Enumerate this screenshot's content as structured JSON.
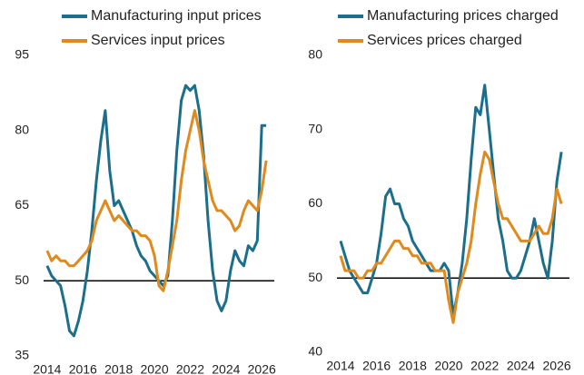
{
  "chart_data": [
    {
      "type": "line",
      "x": [
        2014,
        2014.25,
        2014.5,
        2014.75,
        2015,
        2015.25,
        2015.5,
        2015.75,
        2016,
        2016.25,
        2016.5,
        2016.75,
        2017,
        2017.25,
        2017.5,
        2017.75,
        2018,
        2018.25,
        2018.5,
        2018.75,
        2019,
        2019.25,
        2019.5,
        2019.75,
        2020,
        2020.25,
        2020.5,
        2020.75,
        2021,
        2021.25,
        2021.5,
        2021.75,
        2022,
        2022.25,
        2022.5,
        2022.75,
        2023,
        2023.25,
        2023.5,
        2023.75,
        2024,
        2024.25,
        2024.5,
        2024.75,
        2025,
        2025.25,
        2025.5,
        2025.75,
        2026,
        2026.25
      ],
      "series": [
        {
          "name": "Manufacturing input prices",
          "color": "#1b6f8c",
          "values": [
            53,
            51,
            50,
            49,
            45,
            40,
            39,
            42,
            46,
            52,
            60,
            70,
            78,
            84,
            72,
            65,
            66,
            64,
            62,
            60,
            57,
            55,
            54,
            52,
            51,
            50,
            49,
            51,
            62,
            76,
            86,
            89,
            88,
            89,
            84,
            75,
            62,
            52,
            46,
            44,
            46,
            52,
            56,
            54,
            53,
            57,
            56,
            58,
            81,
            81
          ]
        },
        {
          "name": "Services input prices",
          "color": "#e08a1e",
          "values": [
            56,
            54,
            55,
            54,
            54,
            53,
            53,
            54,
            55,
            56,
            58,
            62,
            64,
            66,
            64,
            62,
            63,
            62,
            61,
            60,
            60,
            59,
            59,
            58,
            55,
            49,
            48,
            52,
            57,
            62,
            70,
            76,
            80,
            84,
            80,
            74,
            70,
            66,
            64,
            64,
            63,
            62,
            60,
            61,
            64,
            66,
            65,
            64,
            68,
            74
          ]
        }
      ],
      "xlim": [
        2013.7,
        2026.7
      ],
      "xticks": [
        2014,
        2016,
        2018,
        2020,
        2022,
        2024,
        2026
      ],
      "ylim": [
        35,
        95
      ],
      "yticks": [
        35,
        50,
        65,
        80,
        95
      ],
      "reference_line": 50
    },
    {
      "type": "line",
      "x": [
        2014,
        2014.25,
        2014.5,
        2014.75,
        2015,
        2015.25,
        2015.5,
        2015.75,
        2016,
        2016.25,
        2016.5,
        2016.75,
        2017,
        2017.25,
        2017.5,
        2017.75,
        2018,
        2018.25,
        2018.5,
        2018.75,
        2019,
        2019.25,
        2019.5,
        2019.75,
        2020,
        2020.25,
        2020.5,
        2020.75,
        2021,
        2021.25,
        2021.5,
        2021.75,
        2022,
        2022.25,
        2022.5,
        2022.75,
        2023,
        2023.25,
        2023.5,
        2023.75,
        2024,
        2024.25,
        2024.5,
        2024.75,
        2025,
        2025.25,
        2025.5,
        2025.75,
        2026,
        2026.25
      ],
      "series": [
        {
          "name": "Manufacturing prices charged",
          "color": "#1b6f8c",
          "values": [
            55,
            53,
            51,
            50,
            49,
            48,
            48,
            50,
            52,
            56,
            61,
            62,
            60,
            60,
            58,
            57,
            55,
            54,
            53,
            52,
            51,
            51,
            51,
            52,
            51,
            45,
            48,
            52,
            58,
            66,
            73,
            72,
            76,
            70,
            64,
            58,
            55,
            51,
            50,
            50,
            51,
            53,
            55,
            58,
            55,
            52,
            50,
            55,
            63,
            67
          ]
        },
        {
          "name": "Services prices charged",
          "color": "#e08a1e",
          "values": [
            53,
            51,
            51,
            51,
            50,
            50,
            51,
            51,
            52,
            52,
            53,
            54,
            55,
            55,
            54,
            54,
            53,
            53,
            52,
            52,
            52,
            51,
            51,
            51,
            47,
            44,
            48,
            50,
            52,
            55,
            60,
            64,
            67,
            66,
            63,
            60,
            58,
            58,
            57,
            56,
            55,
            55,
            55,
            56,
            57,
            56,
            56,
            58,
            62,
            60
          ]
        }
      ],
      "xlim": [
        2013.7,
        2026.7
      ],
      "xticks": [
        2014,
        2016,
        2018,
        2020,
        2022,
        2024,
        2026
      ],
      "ylim": [
        40,
        80
      ],
      "yticks": [
        40,
        50,
        60,
        70,
        80
      ],
      "reference_line": 50
    }
  ]
}
